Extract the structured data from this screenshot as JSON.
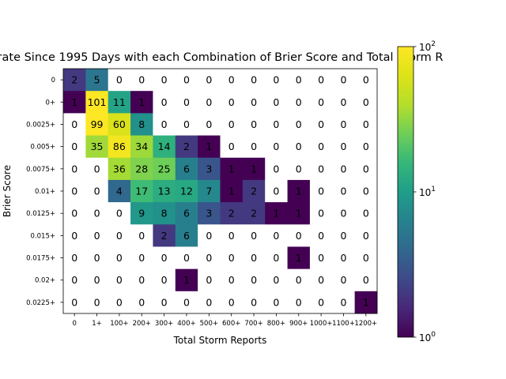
{
  "chart_data": {
    "type": "heatmap",
    "title": "rate Since 1995 Days with each Combination of Brier Score and Total Storm R",
    "xlabel": "Total Storm Reports",
    "ylabel": "Brier Score",
    "x_categories": [
      "0",
      "1+",
      "100+",
      "200+",
      "300+",
      "400+",
      "500+",
      "600+",
      "700+",
      "800+",
      "900+",
      "1000+",
      "1100+",
      "1200+"
    ],
    "y_categories": [
      "0",
      "0+",
      "0.0025+",
      "0.005+",
      "0.0075+",
      "0.01+",
      "0.0125+",
      "0.015+",
      "0.0175+",
      "0.02+",
      "0.0225+"
    ],
    "values": [
      [
        2,
        5,
        0,
        0,
        0,
        0,
        0,
        0,
        0,
        0,
        0,
        0,
        0,
        0
      ],
      [
        1,
        101,
        11,
        1,
        0,
        0,
        0,
        0,
        0,
        0,
        0,
        0,
        0,
        0
      ],
      [
        0,
        99,
        60,
        8,
        0,
        0,
        0,
        0,
        0,
        0,
        0,
        0,
        0,
        0
      ],
      [
        0,
        35,
        86,
        34,
        14,
        2,
        1,
        0,
        0,
        0,
        0,
        0,
        0,
        0
      ],
      [
        0,
        0,
        36,
        28,
        25,
        6,
        3,
        1,
        1,
        0,
        0,
        0,
        0,
        0
      ],
      [
        0,
        0,
        4,
        17,
        13,
        12,
        7,
        1,
        2,
        0,
        1,
        0,
        0,
        0
      ],
      [
        0,
        0,
        0,
        9,
        8,
        6,
        3,
        2,
        2,
        1,
        1,
        0,
        0,
        0
      ],
      [
        0,
        0,
        0,
        0,
        2,
        6,
        0,
        0,
        0,
        0,
        0,
        0,
        0,
        0
      ],
      [
        0,
        0,
        0,
        0,
        0,
        0,
        0,
        0,
        0,
        0,
        1,
        0,
        0,
        0
      ],
      [
        0,
        0,
        0,
        0,
        0,
        1,
        0,
        0,
        0,
        0,
        0,
        0,
        0,
        0
      ],
      [
        0,
        0,
        0,
        0,
        0,
        0,
        0,
        0,
        0,
        0,
        0,
        0,
        0,
        1
      ]
    ],
    "colormap": "viridis",
    "color_scale": "log",
    "color_range": [
      1,
      100
    ],
    "colorbar_ticks": [
      {
        "value": 100,
        "base": "10",
        "exp": "2"
      },
      {
        "value": 10,
        "base": "10",
        "exp": "1"
      },
      {
        "value": 1,
        "base": "10",
        "exp": "0"
      }
    ],
    "zero_color": "#ffffff",
    "grid": false
  }
}
